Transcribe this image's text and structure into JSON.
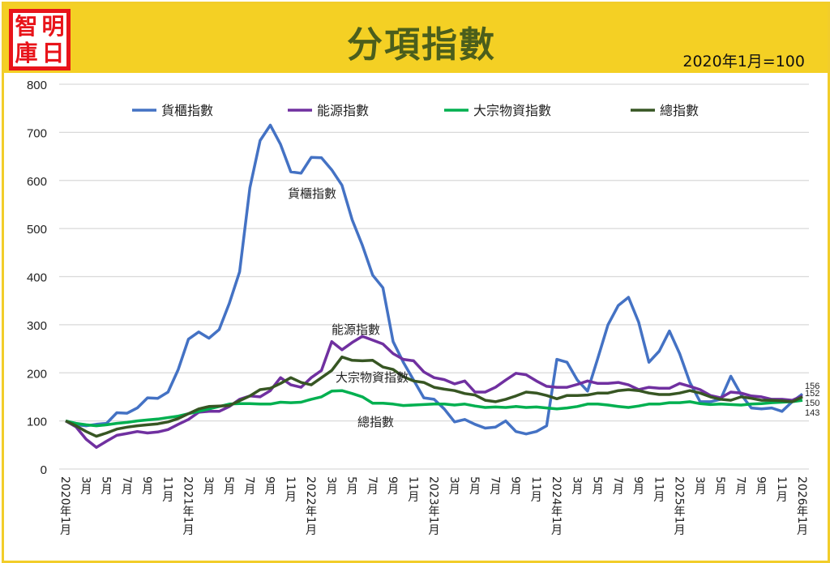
{
  "header": {
    "logo_chars": [
      "智",
      "明",
      "庫",
      "日"
    ],
    "title": "分項指數",
    "subtitle": "2020年1月=100"
  },
  "chart_data": {
    "type": "line",
    "title": "分項指數",
    "subtitle": "2020年1月=100",
    "xlabel": "",
    "ylabel": "",
    "ylim": [
      0,
      800
    ],
    "yticks": [
      0,
      100,
      200,
      300,
      400,
      500,
      600,
      700,
      800
    ],
    "grid": true,
    "legend_position": "top",
    "x_start": "2020年1月",
    "x_end": "2026年1月",
    "x_tick_labels": [
      "2020年1月",
      "3月",
      "5月",
      "7月",
      "9月",
      "11月",
      "2021年1月",
      "3月",
      "5月",
      "7月",
      "9月",
      "11月",
      "2022年1月",
      "3月",
      "5月",
      "7月",
      "9月",
      "11月",
      "2023年1月",
      "3月",
      "5月",
      "7月",
      "9月",
      "11月",
      "2024年1月",
      "3月",
      "5月",
      "7月",
      "9月",
      "11月",
      "2025年1月",
      "3月",
      "5月",
      "7月",
      "9月",
      "11月",
      "2026年1月"
    ],
    "series": [
      {
        "name": "貨櫃指數",
        "color": "#4472c4",
        "label_text": "貨櫃指數",
        "end_label": "156",
        "values": [
          100,
          92,
          90,
          93,
          95,
          117,
          116,
          127,
          148,
          147,
          160,
          207,
          270,
          285,
          272,
          290,
          345,
          410,
          585,
          683,
          715,
          675,
          618,
          615,
          648,
          647,
          622,
          590,
          518,
          465,
          403,
          377,
          265,
          222,
          185,
          148,
          145,
          125,
          98,
          103,
          93,
          85,
          87,
          100,
          78,
          73,
          78,
          90,
          228,
          222,
          185,
          162,
          230,
          300,
          340,
          357,
          305,
          222,
          245,
          287,
          240,
          180,
          140,
          140,
          145,
          193,
          155,
          127,
          125,
          127,
          120,
          140,
          156
        ]
      },
      {
        "name": "能源指數",
        "color": "#7030a0",
        "label_text": "能源指數",
        "end_label": "152",
        "values": [
          100,
          88,
          62,
          45,
          58,
          70,
          74,
          78,
          75,
          77,
          82,
          93,
          103,
          118,
          120,
          120,
          130,
          145,
          152,
          150,
          163,
          190,
          175,
          170,
          190,
          205,
          265,
          248,
          263,
          276,
          268,
          260,
          240,
          228,
          225,
          202,
          190,
          186,
          177,
          183,
          160,
          160,
          170,
          185,
          199,
          196,
          183,
          172,
          170,
          170,
          176,
          183,
          178,
          178,
          180,
          175,
          165,
          170,
          168,
          168,
          178,
          172,
          165,
          153,
          148,
          160,
          158,
          152,
          150,
          145,
          145,
          143,
          152
        ]
      },
      {
        "name": "大宗物資指數",
        "color": "#00b050",
        "label_text": "大宗物資指數",
        "end_label": "143",
        "values": [
          100,
          95,
          92,
          90,
          92,
          95,
          97,
          100,
          102,
          104,
          107,
          110,
          115,
          120,
          125,
          130,
          135,
          136,
          136,
          135,
          135,
          139,
          138,
          139,
          145,
          150,
          162,
          163,
          157,
          150,
          137,
          137,
          135,
          132,
          133,
          134,
          135,
          135,
          133,
          135,
          131,
          128,
          129,
          128,
          130,
          128,
          129,
          127,
          125,
          127,
          130,
          135,
          135,
          133,
          130,
          128,
          131,
          135,
          135,
          138,
          138,
          140,
          136,
          134,
          135,
          134,
          133,
          135,
          136,
          138,
          139,
          140,
          143
        ]
      },
      {
        "name": "總指數",
        "color": "#375623",
        "label_text": "總指數",
        "end_label": "150",
        "values": [
          100,
          90,
          78,
          68,
          75,
          83,
          87,
          90,
          92,
          94,
          98,
          105,
          115,
          125,
          130,
          131,
          132,
          142,
          152,
          165,
          168,
          178,
          190,
          180,
          175,
          190,
          205,
          233,
          226,
          225,
          226,
          212,
          207,
          192,
          183,
          180,
          170,
          166,
          163,
          157,
          154,
          143,
          140,
          145,
          152,
          160,
          158,
          153,
          146,
          153,
          153,
          154,
          158,
          158,
          163,
          165,
          163,
          158,
          155,
          155,
          158,
          163,
          158,
          150,
          145,
          143,
          150,
          147,
          143,
          143,
          142,
          140,
          150
        ]
      }
    ]
  }
}
